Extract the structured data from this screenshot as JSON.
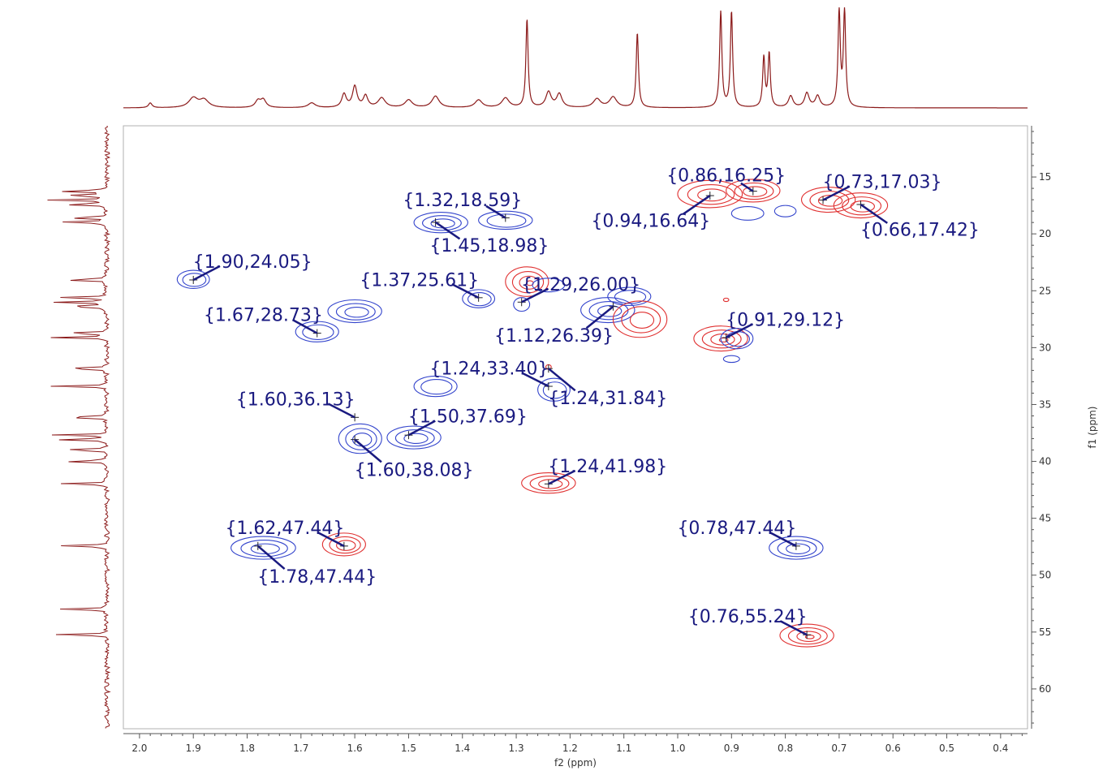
{
  "chart_data": {
    "type": "scatter",
    "title": "",
    "xlabel": "f2 (ppm)",
    "ylabel": "f1 (ppm)",
    "x_reversed": true,
    "y_reversed": true,
    "xlim": [
      2.03,
      0.35
    ],
    "ylim": [
      10.5,
      63.5
    ],
    "x_ticks": [
      "2.0",
      "1.9",
      "1.8",
      "1.7",
      "1.6",
      "1.5",
      "1.4",
      "1.3",
      "1.2",
      "1.1",
      "1.0",
      "0.9",
      "0.8",
      "0.7",
      "0.6",
      "0.5",
      "0.4"
    ],
    "y_ticks": [
      "15",
      "20",
      "25",
      "30",
      "35",
      "40",
      "45",
      "50",
      "55",
      "60"
    ],
    "legend": "none",
    "grid": false,
    "colors": {
      "positive": "#e03030",
      "negative": "#3344cc",
      "spectrum": "#8b1a1a",
      "label": "#1a1a80"
    },
    "projection_f2_peaks": [
      {
        "x": 1.98,
        "h": 0.05,
        "w": 0.004
      },
      {
        "x": 1.9,
        "h": 0.1,
        "w": 0.01
      },
      {
        "x": 1.88,
        "h": 0.08,
        "w": 0.01
      },
      {
        "x": 1.78,
        "h": 0.07,
        "w": 0.006
      },
      {
        "x": 1.77,
        "h": 0.08,
        "w": 0.006
      },
      {
        "x": 1.68,
        "h": 0.05,
        "w": 0.008
      },
      {
        "x": 1.62,
        "h": 0.14,
        "w": 0.005
      },
      {
        "x": 1.6,
        "h": 0.22,
        "w": 0.005
      },
      {
        "x": 1.58,
        "h": 0.12,
        "w": 0.005
      },
      {
        "x": 1.55,
        "h": 0.1,
        "w": 0.008
      },
      {
        "x": 1.5,
        "h": 0.08,
        "w": 0.008
      },
      {
        "x": 1.45,
        "h": 0.12,
        "w": 0.008
      },
      {
        "x": 1.37,
        "h": 0.08,
        "w": 0.008
      },
      {
        "x": 1.32,
        "h": 0.1,
        "w": 0.008
      },
      {
        "x": 1.28,
        "h": 0.92,
        "w": 0.0025
      },
      {
        "x": 1.24,
        "h": 0.16,
        "w": 0.006
      },
      {
        "x": 1.22,
        "h": 0.14,
        "w": 0.006
      },
      {
        "x": 1.15,
        "h": 0.09,
        "w": 0.008
      },
      {
        "x": 1.12,
        "h": 0.11,
        "w": 0.008
      },
      {
        "x": 1.075,
        "h": 0.78,
        "w": 0.0025
      },
      {
        "x": 0.92,
        "h": 1.0,
        "w": 0.0025
      },
      {
        "x": 0.9,
        "h": 1.0,
        "w": 0.0025
      },
      {
        "x": 0.84,
        "h": 0.52,
        "w": 0.0025
      },
      {
        "x": 0.83,
        "h": 0.56,
        "w": 0.0025
      },
      {
        "x": 0.79,
        "h": 0.12,
        "w": 0.005
      },
      {
        "x": 0.76,
        "h": 0.15,
        "w": 0.005
      },
      {
        "x": 0.74,
        "h": 0.12,
        "w": 0.005
      },
      {
        "x": 0.7,
        "h": 1.0,
        "w": 0.0025
      },
      {
        "x": 0.69,
        "h": 1.0,
        "w": 0.0025
      }
    ],
    "projection_f1_peaks": [
      16.25,
      16.64,
      17.03,
      17.42,
      18.59,
      18.98,
      24.05,
      25.61,
      26.0,
      26.39,
      28.73,
      29.12,
      31.84,
      33.4,
      36.13,
      37.69,
      38.08,
      39.0,
      40.0,
      41.98,
      47.44,
      53.0,
      55.24
    ],
    "contours": [
      {
        "x": 0.94,
        "y": 16.5,
        "rx": 0.06,
        "ry": 1.2,
        "sign": "positive",
        "levels": 3
      },
      {
        "x": 0.86,
        "y": 16.2,
        "rx": 0.05,
        "ry": 1.0,
        "sign": "positive",
        "levels": 3
      },
      {
        "x": 0.87,
        "y": 18.2,
        "rx": 0.03,
        "ry": 0.6,
        "sign": "negative",
        "levels": 1
      },
      {
        "x": 0.8,
        "y": 18.0,
        "rx": 0.02,
        "ry": 0.5,
        "sign": "negative",
        "levels": 1
      },
      {
        "x": 0.72,
        "y": 17.0,
        "rx": 0.05,
        "ry": 1.1,
        "sign": "positive",
        "levels": 3
      },
      {
        "x": 0.66,
        "y": 17.5,
        "rx": 0.05,
        "ry": 1.1,
        "sign": "positive",
        "levels": 3
      },
      {
        "x": 1.44,
        "y": 19.0,
        "rx": 0.05,
        "ry": 0.9,
        "sign": "negative",
        "levels": 3
      },
      {
        "x": 1.32,
        "y": 18.8,
        "rx": 0.05,
        "ry": 0.8,
        "sign": "negative",
        "levels": 2
      },
      {
        "x": 1.9,
        "y": 24.0,
        "rx": 0.03,
        "ry": 0.8,
        "sign": "negative",
        "levels": 2
      },
      {
        "x": 1.37,
        "y": 25.7,
        "rx": 0.03,
        "ry": 0.8,
        "sign": "negative",
        "levels": 2
      },
      {
        "x": 1.28,
        "y": 24.2,
        "rx": 0.04,
        "ry": 1.3,
        "sign": "positive",
        "levels": 4
      },
      {
        "x": 1.29,
        "y": 26.2,
        "rx": 0.015,
        "ry": 0.6,
        "sign": "negative",
        "levels": 1
      },
      {
        "x": 1.24,
        "y": 24.5,
        "rx": 0.03,
        "ry": 0.6,
        "sign": "negative",
        "levels": 1
      },
      {
        "x": 1.6,
        "y": 26.8,
        "rx": 0.05,
        "ry": 1.0,
        "sign": "negative",
        "levels": 3
      },
      {
        "x": 1.67,
        "y": 28.6,
        "rx": 0.04,
        "ry": 0.9,
        "sign": "negative",
        "levels": 2
      },
      {
        "x": 1.13,
        "y": 26.7,
        "rx": 0.05,
        "ry": 1.1,
        "sign": "negative",
        "levels": 3
      },
      {
        "x": 1.09,
        "y": 25.5,
        "rx": 0.04,
        "ry": 0.8,
        "sign": "negative",
        "levels": 2
      },
      {
        "x": 1.07,
        "y": 27.5,
        "rx": 0.05,
        "ry": 1.6,
        "sign": "positive",
        "levels": 3
      },
      {
        "x": 0.92,
        "y": 29.2,
        "rx": 0.05,
        "ry": 1.1,
        "sign": "positive",
        "levels": 4
      },
      {
        "x": 0.89,
        "y": 29.2,
        "rx": 0.03,
        "ry": 0.9,
        "sign": "negative",
        "levels": 2
      },
      {
        "x": 0.9,
        "y": 31.0,
        "rx": 0.015,
        "ry": 0.3,
        "sign": "negative",
        "levels": 1
      },
      {
        "x": 0.91,
        "y": 25.8,
        "rx": 0.005,
        "ry": 0.15,
        "sign": "positive",
        "levels": 1
      },
      {
        "x": 1.45,
        "y": 33.4,
        "rx": 0.04,
        "ry": 0.9,
        "sign": "negative",
        "levels": 2
      },
      {
        "x": 1.23,
        "y": 33.7,
        "rx": 0.03,
        "ry": 1.0,
        "sign": "negative",
        "levels": 2
      },
      {
        "x": 1.24,
        "y": 31.7,
        "rx": 0.005,
        "ry": 0.2,
        "sign": "positive",
        "levels": 1
      },
      {
        "x": 1.59,
        "y": 38.0,
        "rx": 0.04,
        "ry": 1.3,
        "sign": "negative",
        "levels": 3
      },
      {
        "x": 1.49,
        "y": 37.9,
        "rx": 0.05,
        "ry": 1.0,
        "sign": "negative",
        "levels": 3
      },
      {
        "x": 1.24,
        "y": 41.9,
        "rx": 0.05,
        "ry": 0.9,
        "sign": "positive",
        "levels": 3
      },
      {
        "x": 1.77,
        "y": 47.6,
        "rx": 0.06,
        "ry": 1.0,
        "sign": "negative",
        "levels": 3
      },
      {
        "x": 1.62,
        "y": 47.3,
        "rx": 0.04,
        "ry": 1.0,
        "sign": "positive",
        "levels": 3
      },
      {
        "x": 0.78,
        "y": 47.6,
        "rx": 0.05,
        "ry": 1.0,
        "sign": "negative",
        "levels": 3
      },
      {
        "x": 0.76,
        "y": 55.3,
        "rx": 0.05,
        "ry": 1.0,
        "sign": "positive",
        "levels": 4
      }
    ],
    "peaks": [
      {
        "label": "{0.86,16.25}",
        "x": 0.86,
        "y": 16.25,
        "lx": 0.91,
        "ly": 14.8,
        "anchor": "middle"
      },
      {
        "label": "{0.94,16.64}",
        "x": 0.94,
        "y": 16.64,
        "lx": 1.05,
        "ly": 18.8,
        "anchor": "middle"
      },
      {
        "label": "{0.73,17.03}",
        "x": 0.73,
        "y": 17.03,
        "lx": 0.62,
        "ly": 15.4,
        "anchor": "middle"
      },
      {
        "label": "{0.66,17.42}",
        "x": 0.66,
        "y": 17.42,
        "lx": 0.55,
        "ly": 19.6,
        "anchor": "middle"
      },
      {
        "label": "{1.32,18.59}",
        "x": 1.32,
        "y": 18.59,
        "lx": 1.4,
        "ly": 17.0,
        "anchor": "middle"
      },
      {
        "label": "{1.45,18.98}",
        "x": 1.45,
        "y": 18.98,
        "lx": 1.35,
        "ly": 21.0,
        "anchor": "middle"
      },
      {
        "label": "{1.90,24.05}",
        "x": 1.9,
        "y": 24.05,
        "lx": 1.79,
        "ly": 22.4,
        "anchor": "middle"
      },
      {
        "label": "{1.37,25.61}",
        "x": 1.37,
        "y": 25.61,
        "lx": 1.48,
        "ly": 24.0,
        "anchor": "middle"
      },
      {
        "label": "{1.29,26.00}",
        "x": 1.29,
        "y": 26.0,
        "lx": 1.18,
        "ly": 24.4,
        "anchor": "middle"
      },
      {
        "label": "{1.12,26.39}",
        "x": 1.12,
        "y": 26.39,
        "lx": 1.23,
        "ly": 28.9,
        "anchor": "middle"
      },
      {
        "label": "{1.67,28.73}",
        "x": 1.67,
        "y": 28.73,
        "lx": 1.77,
        "ly": 27.1,
        "anchor": "middle"
      },
      {
        "label": "{0.91,29.12}",
        "x": 0.91,
        "y": 29.12,
        "lx": 0.8,
        "ly": 27.5,
        "anchor": "middle"
      },
      {
        "label": "{1.24,33.40}",
        "x": 1.24,
        "y": 33.4,
        "lx": 1.35,
        "ly": 31.8,
        "anchor": "middle"
      },
      {
        "label": "{1.24,31.84}",
        "x": 1.24,
        "y": 31.84,
        "lx": 1.13,
        "ly": 34.4,
        "anchor": "middle"
      },
      {
        "label": "{1.60,36.13}",
        "x": 1.6,
        "y": 36.13,
        "lx": 1.71,
        "ly": 34.5,
        "anchor": "middle"
      },
      {
        "label": "{1.50,37.69}",
        "x": 1.5,
        "y": 37.69,
        "lx": 1.39,
        "ly": 36.0,
        "anchor": "middle"
      },
      {
        "label": "{1.60,38.08}",
        "x": 1.6,
        "y": 38.08,
        "lx": 1.49,
        "ly": 40.7,
        "anchor": "middle"
      },
      {
        "label": "{1.24,41.98}",
        "x": 1.24,
        "y": 41.98,
        "lx": 1.13,
        "ly": 40.4,
        "anchor": "middle"
      },
      {
        "label": "{1.62,47.44}",
        "x": 1.62,
        "y": 47.44,
        "lx": 1.73,
        "ly": 45.8,
        "anchor": "middle"
      },
      {
        "label": "{1.78,47.44}",
        "x": 1.78,
        "y": 47.44,
        "lx": 1.67,
        "ly": 50.1,
        "anchor": "middle"
      },
      {
        "label": "{0.78,47.44}",
        "x": 0.78,
        "y": 47.44,
        "lx": 0.89,
        "ly": 45.8,
        "anchor": "middle"
      },
      {
        "label": "{0.76,55.24}",
        "x": 0.76,
        "y": 55.24,
        "lx": 0.87,
        "ly": 53.6,
        "anchor": "middle"
      }
    ]
  }
}
